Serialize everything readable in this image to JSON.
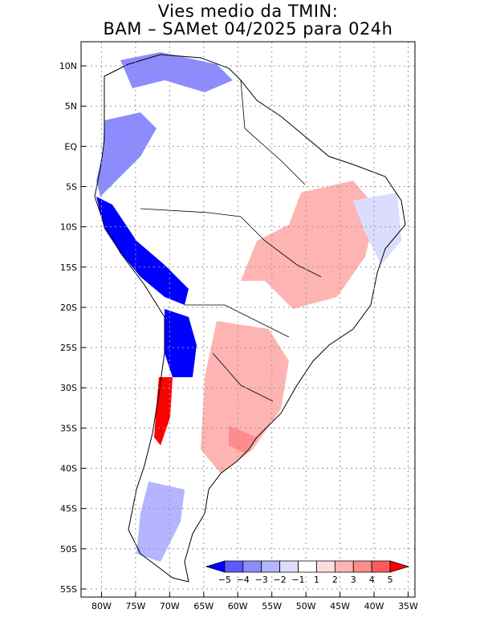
{
  "title": {
    "line1": "Vies medio da TMIN:",
    "line2": "BAM – SAMet 04/2025  para 024h"
  },
  "axes": {
    "lon_labels": [
      "80W",
      "75W",
      "70W",
      "65W",
      "60W",
      "55W",
      "50W",
      "45W",
      "40W",
      "35W"
    ],
    "lat_labels": [
      "10N",
      "5N",
      "EQ",
      "5S",
      "10S",
      "15S",
      "20S",
      "25S",
      "30S",
      "35S",
      "40S",
      "45S",
      "50S",
      "55S"
    ],
    "lon_range": [
      -83,
      -34
    ],
    "lat_range": [
      13,
      -56
    ]
  },
  "legend": {
    "labels": [
      "−5",
      "−4",
      "−3",
      "−2",
      "−1",
      "1",
      "2",
      "3",
      "4",
      "5"
    ],
    "colors": [
      "#0000ff",
      "#5a5aff",
      "#8c8cff",
      "#b4b4ff",
      "#dcdcff",
      "#ffffff",
      "#ffdcdc",
      "#ffb4b4",
      "#ff8c8c",
      "#ff5a5a",
      "#ff0000"
    ]
  },
  "colors": {
    "grid": "#999999",
    "coast": "#000000"
  }
}
